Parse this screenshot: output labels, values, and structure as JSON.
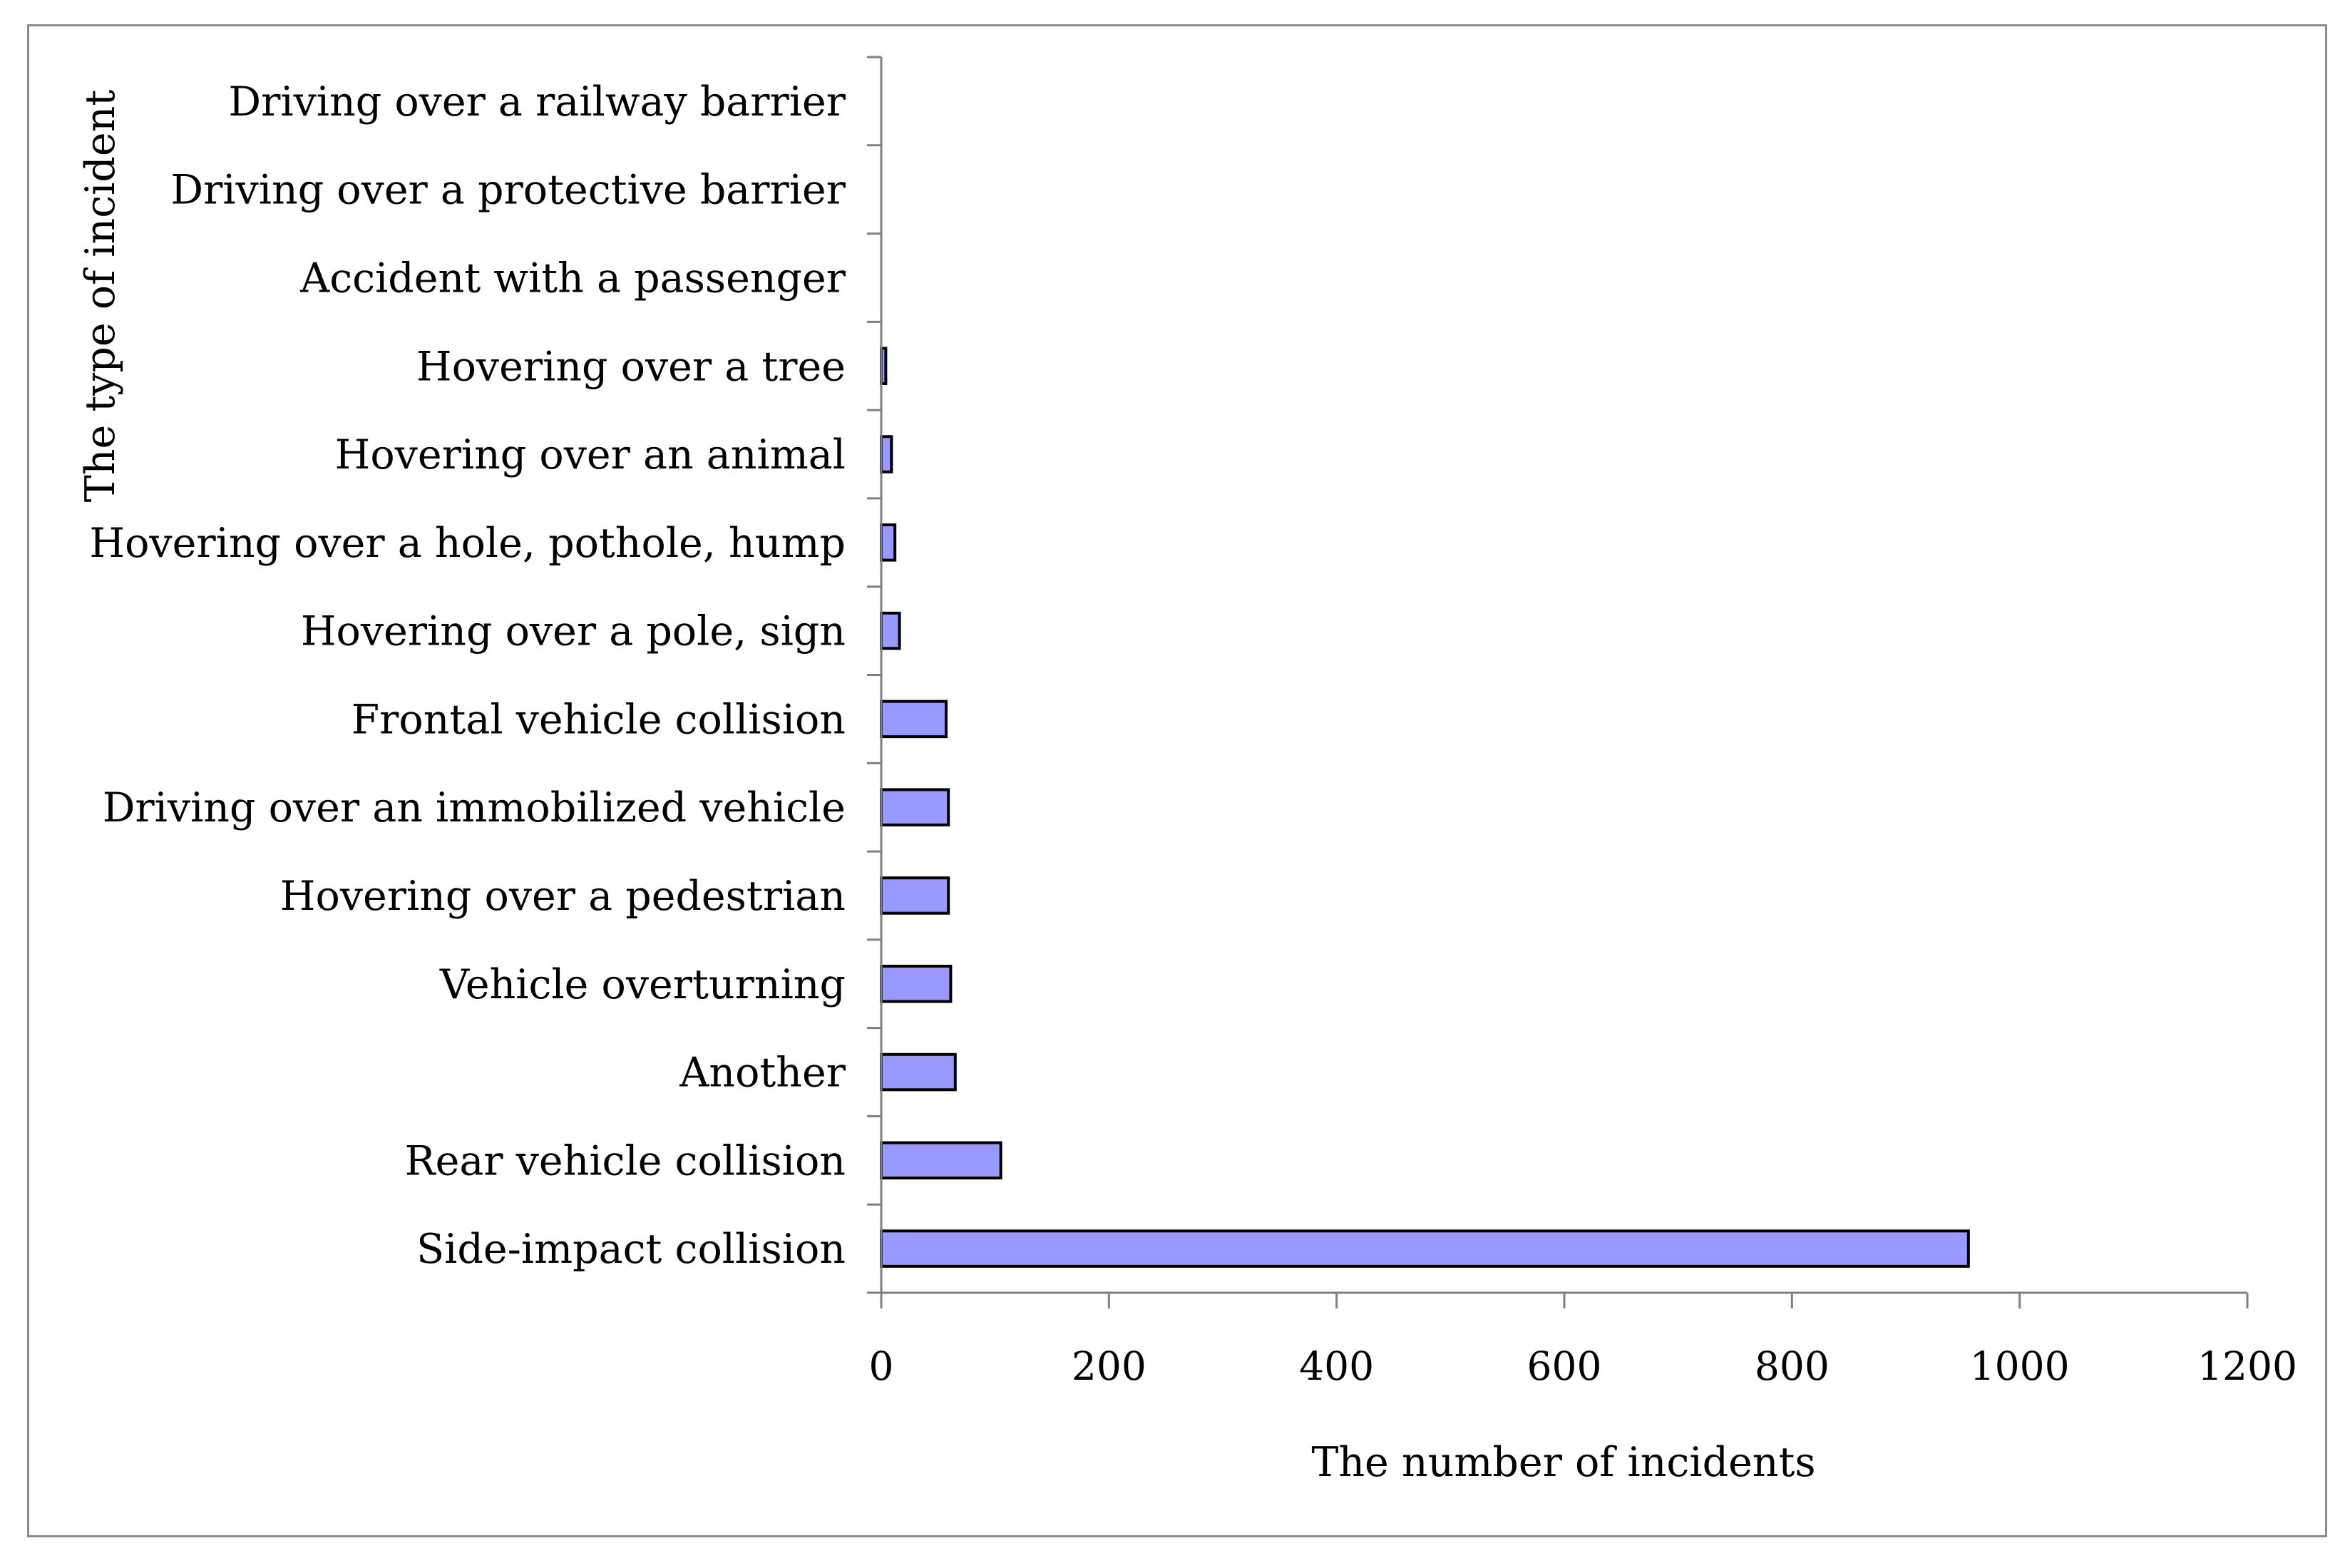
{
  "chart_data": {
    "type": "bar",
    "orientation": "horizontal",
    "title": "",
    "xlabel": "The number of incidents",
    "ylabel": "The type of incident",
    "xlim": [
      0,
      1200
    ],
    "xticks": [
      0,
      200,
      400,
      600,
      800,
      1000,
      1200
    ],
    "xtick_labels": [
      "0",
      "200",
      "400",
      "600",
      "800",
      "1000",
      "1200"
    ],
    "grid": false,
    "legend": "none",
    "categories": [
      "Driving over a railway barrier",
      "Driving over a protective barrier",
      "Accident with a passenger",
      "Hovering over a tree",
      "Hovering over an animal",
      "Hovering over a hole, pothole, hump",
      "Hovering over a pole, sign",
      "Frontal vehicle collision",
      "Driving over an immobilized vehicle",
      "Hovering over a pedestrian",
      "Vehicle overturning",
      "Another",
      "Rear vehicle collision",
      "Side-impact collision"
    ],
    "values": [
      0,
      0,
      0,
      4,
      9,
      12,
      16,
      57,
      59,
      59,
      61,
      65,
      105,
      955
    ],
    "colors": {
      "bar_fill": "#9999ff",
      "bar_stroke": "#000000",
      "axis": "#808080",
      "frame": "#8c8c8c"
    }
  }
}
